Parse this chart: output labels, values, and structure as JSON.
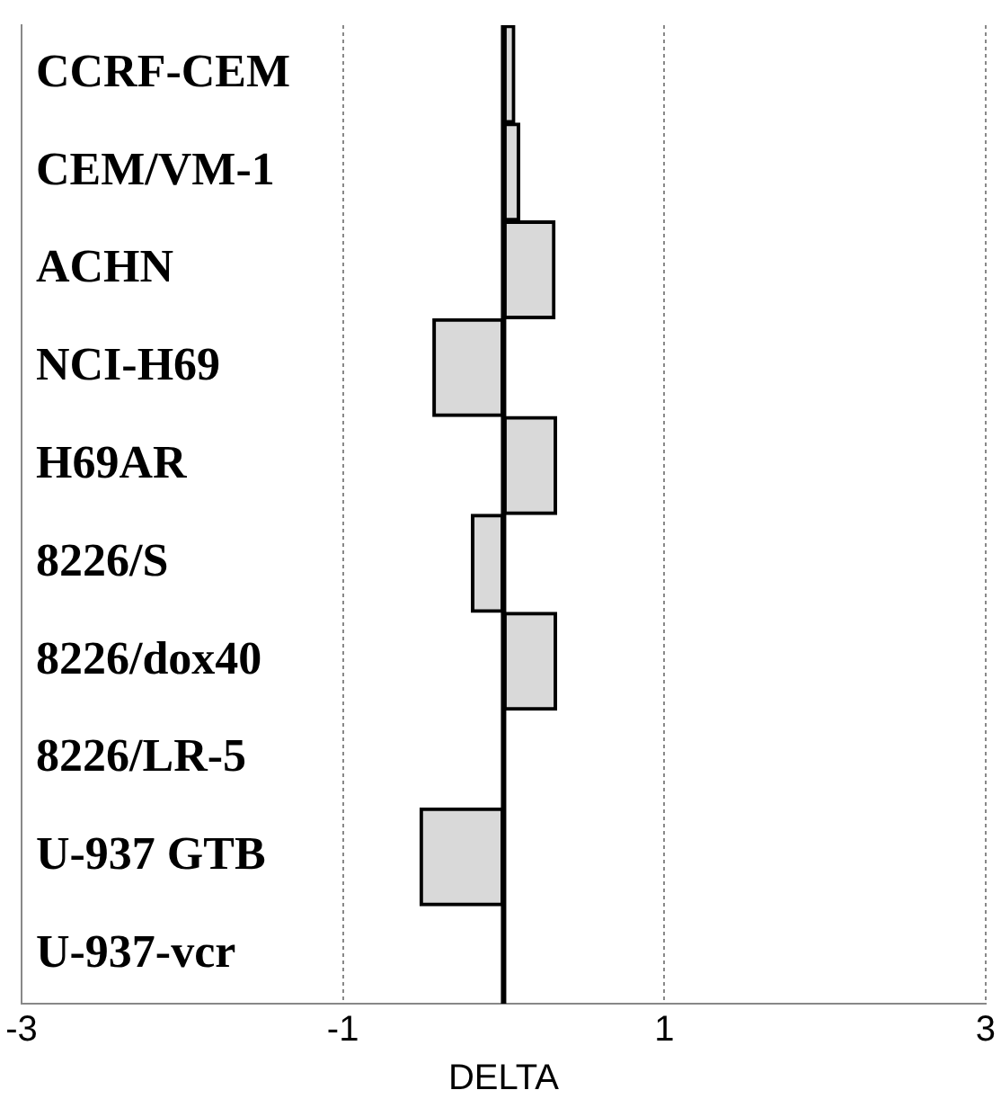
{
  "chart_data": {
    "type": "bar",
    "orientation": "horizontal",
    "xlabel": "DELTA",
    "categories": [
      "CCRF-CEM",
      "CEM/VM-1",
      "ACHN",
      "NCI-H69",
      "H69AR",
      "8226/S",
      "8226/dox40",
      "8226/LR-5",
      "U-937 GTB",
      "U-937-vcr"
    ],
    "values": [
      0.07,
      0.1,
      0.32,
      -0.44,
      0.33,
      -0.2,
      0.33,
      0,
      -0.52,
      0
    ],
    "color": "#d9d9d9",
    "xlim": [
      -3,
      3
    ],
    "xticks": [
      -3,
      -1,
      1,
      3
    ],
    "grid": "x",
    "ref_lines": [
      {
        "axis": "x",
        "value": 0,
        "color": "#000000"
      }
    ]
  }
}
